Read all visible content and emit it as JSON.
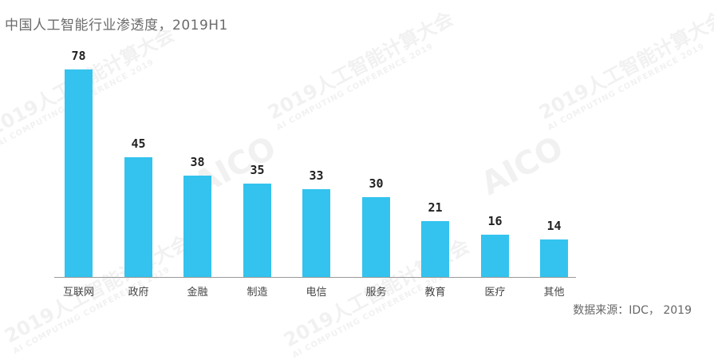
{
  "title": "中国人工智能行业渗透度，2019H1",
  "source": "数据来源：IDC， 2019",
  "watermark": {
    "main": "2019人工智能计算大会",
    "sub": "AI COMPUTING CONFERENCE 2019",
    "logo": "AICO"
  },
  "colors": {
    "bar": "#33c3ee",
    "axis": "#9a9a9a",
    "title": "#6b6b6b"
  },
  "chart_data": {
    "type": "bar",
    "title": "中国人工智能行业渗透度，2019H1",
    "categories": [
      "互联网",
      "政府",
      "金融",
      "制造",
      "电信",
      "服务",
      "教育",
      "医疗",
      "其他"
    ],
    "values": [
      78,
      45,
      38,
      35,
      33,
      30,
      21,
      16,
      14
    ],
    "xlabel": "",
    "ylabel": "",
    "ylim": [
      0,
      78
    ],
    "grid": false,
    "legend": null,
    "data_labels": true,
    "source": "数据来源：IDC， 2019"
  }
}
